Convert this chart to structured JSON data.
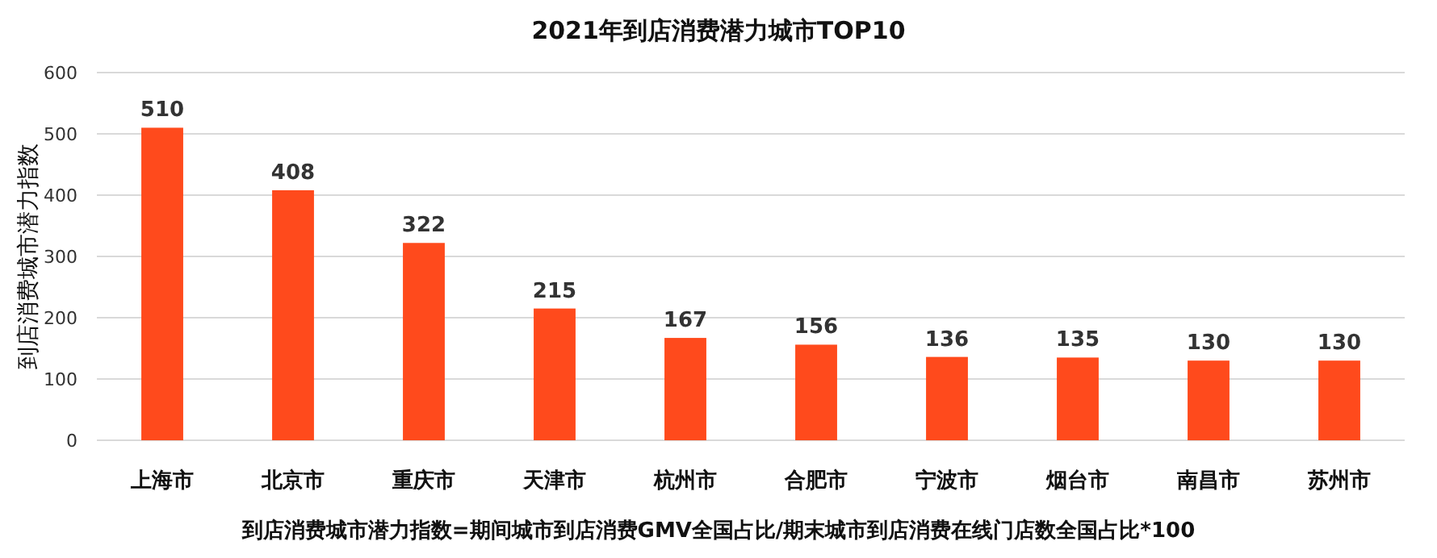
{
  "chart_data": {
    "type": "bar",
    "title": "2021年到店消费潜力城市TOP10",
    "ylabel": "到店消费城市潜力指数",
    "categories": [
      "上海市",
      "北京市",
      "重庆市",
      "天津市",
      "杭州市",
      "合肥市",
      "宁波市",
      "烟台市",
      "南昌市",
      "苏州市"
    ],
    "values": [
      510,
      408,
      322,
      215,
      167,
      156,
      136,
      135,
      130,
      130
    ],
    "color": "#ff4a1c",
    "ylim": [
      0,
      600
    ],
    "yticks": [
      0,
      100,
      200,
      300,
      400,
      500,
      600
    ],
    "grid": "y",
    "data_labels": true,
    "annotations": [
      "到店消费城市潜力指数=期间城市到店消费GMV全国占比/期末城市到店消费在线门店数全国占比*100"
    ]
  }
}
